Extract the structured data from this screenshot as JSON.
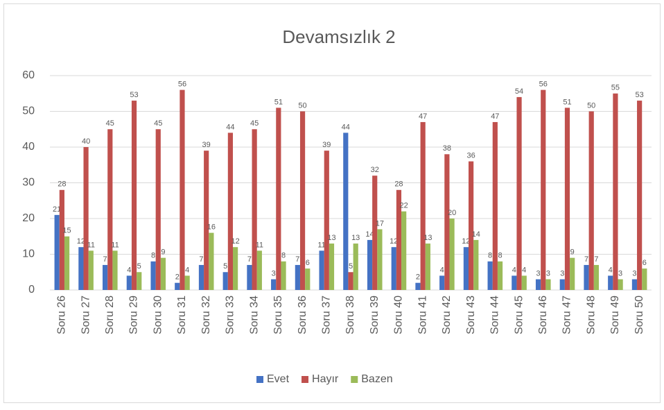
{
  "chart_data": {
    "type": "bar",
    "title": "Devamsızlık 2",
    "categories": [
      "Soru 26",
      "Soru 27",
      "Soru 28",
      "Soru 29",
      "Soru 30",
      "Soru 31",
      "Soru 32",
      "Soru 33",
      "Soru 34",
      "Soru 35",
      "Soru 36",
      "Soru 37",
      "Soru 38",
      "Soru 39",
      "Soru 40",
      "Soru 41",
      "Soru 42",
      "Soru 43",
      "Soru 44",
      "Soru 45",
      "Soru 46",
      "Soru 47",
      "Soru 48",
      "Soru 49",
      "Soru 50"
    ],
    "series": [
      {
        "name": "Evet",
        "color": "#4472c4",
        "values": [
          21,
          12,
          7,
          4,
          8,
          2,
          7,
          5,
          7,
          3,
          7,
          11,
          44,
          14,
          12,
          2,
          4,
          12,
          8,
          4,
          3,
          3,
          7,
          4,
          3
        ]
      },
      {
        "name": "Hayır",
        "color": "#c0504d",
        "values": [
          28,
          40,
          45,
          53,
          45,
          56,
          39,
          44,
          45,
          51,
          50,
          39,
          5,
          32,
          28,
          47,
          38,
          36,
          47,
          54,
          56,
          51,
          50,
          55,
          53
        ]
      },
      {
        "name": "Bazen",
        "color": "#9bbb59",
        "values": [
          15,
          11,
          11,
          5,
          9,
          4,
          16,
          12,
          11,
          8,
          6,
          13,
          13,
          17,
          22,
          13,
          20,
          14,
          8,
          4,
          3,
          9,
          7,
          3,
          6
        ]
      }
    ],
    "ylim": [
      0,
      60
    ],
    "yticks": [
      0,
      10,
      20,
      30,
      40,
      50,
      60
    ],
    "grid": true,
    "legend": "bottom"
  }
}
